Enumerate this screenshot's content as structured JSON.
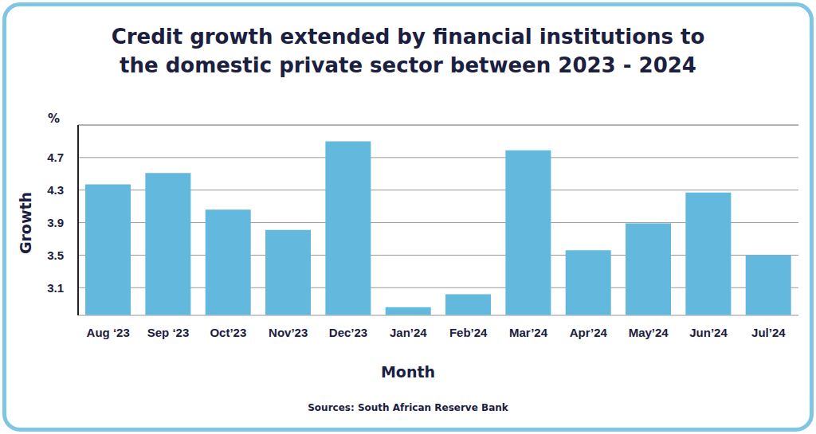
{
  "chart_data": {
    "type": "bar",
    "title": "Credit growth extended by financial institutions to the domestic private sector between 2023 - 2024",
    "x_label": "Month",
    "y_label": "Growth",
    "y_unit": "%",
    "source": "Sources: South African Reserve Bank",
    "categories": [
      "Aug ‘23",
      "Sep ‘23",
      "Oct’23",
      "Nov’23",
      "Dec’23",
      "Jan’24",
      "Feb’24",
      "Mar’24",
      "Apr’24",
      "May’24",
      "Jun’24",
      "Jul’24"
    ],
    "values": [
      4.37,
      4.51,
      4.06,
      3.81,
      4.9,
      2.86,
      3.02,
      4.79,
      3.56,
      3.89,
      4.27,
      3.5
    ],
    "color": "#62b9dd",
    "ylim": [
      2.76,
      5.1
    ],
    "yticks": [
      3.1,
      3.5,
      3.9,
      4.3,
      4.7
    ],
    "grid": true,
    "data_labels": false
  }
}
